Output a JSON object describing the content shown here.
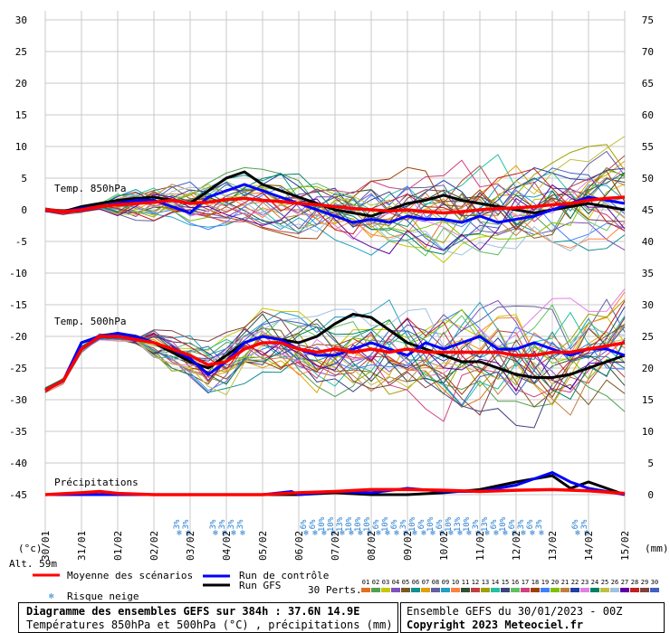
{
  "chart_data": {
    "type": "line",
    "left_ticks": [
      "30",
      "25",
      "20",
      "15",
      "10",
      "5",
      "0",
      "-5",
      "-10",
      "-15",
      "-20",
      "-25",
      "-30",
      "-35",
      "-40",
      "-45"
    ],
    "right_ticks": [
      "75",
      "70",
      "65",
      "60",
      "55",
      "50",
      "45",
      "40",
      "35",
      "30",
      "25",
      "20",
      "15",
      "10",
      "5",
      "0"
    ],
    "dates": [
      "30/01",
      "31/01",
      "01/02",
      "02/02",
      "03/02",
      "04/02",
      "05/02",
      "06/02",
      "07/02",
      "08/02",
      "09/02",
      "10/02",
      "11/02",
      "12/02",
      "13/02",
      "14/02",
      "15/02"
    ],
    "left_unit": "(°c)",
    "right_unit": "(mm)",
    "panel_labels": [
      "Temp. 850hPa",
      "Temp. 500hPa",
      "Précipitations"
    ],
    "x_day_range": [
      0,
      16
    ],
    "ylim_temp": [
      -45,
      30
    ],
    "ylim_precip": [
      0,
      75
    ],
    "series": [
      {
        "name": "Moyenne des scénarios",
        "panel": "850",
        "x": [
          0,
          0.5,
          1,
          1.5,
          2,
          2.5,
          3,
          3.5,
          4,
          4.5,
          5,
          5.5,
          6,
          6.5,
          7,
          7.5,
          8,
          8.5,
          9,
          9.5,
          10,
          10.5,
          11,
          11.5,
          12,
          12.5,
          13,
          13.5,
          14,
          14.5,
          15,
          15.5,
          16
        ],
        "y": [
          0,
          -0.3,
          0,
          0.5,
          0.8,
          1,
          1.2,
          1.5,
          1,
          1.2,
          1.6,
          1.8,
          1.5,
          1.3,
          1,
          0.8,
          0.5,
          0.2,
          0,
          -0.2,
          0,
          -0.3,
          -0.5,
          -0.3,
          0,
          0.2,
          0.3,
          0.5,
          0.8,
          1,
          1.5,
          1.8,
          2
        ]
      },
      {
        "name": "Run de contrôle",
        "panel": "850",
        "x": [
          0,
          0.5,
          1,
          1.5,
          2,
          2.5,
          3,
          3.5,
          4,
          4.5,
          5,
          5.5,
          6,
          6.5,
          7,
          7.5,
          8,
          8.5,
          9,
          9.5,
          10,
          10.5,
          11,
          11.5,
          12,
          12.5,
          13,
          13.5,
          14,
          14.5,
          15,
          15.5,
          16
        ],
        "y": [
          0,
          -0.3,
          0.2,
          0.5,
          1,
          1.5,
          1.5,
          0.5,
          -0.5,
          2,
          3,
          4,
          3,
          2,
          1,
          0,
          -1,
          -2,
          -1.5,
          -2,
          -1,
          -1.5,
          -1.5,
          -2,
          -1,
          -2,
          -1.5,
          -1,
          0,
          1,
          2,
          1.5,
          1
        ]
      },
      {
        "name": "Run GFS",
        "panel": "850",
        "x": [
          0,
          0.5,
          1,
          1.5,
          2,
          2.5,
          3,
          3.5,
          4,
          4.5,
          5,
          5.5,
          6,
          6.5,
          7,
          7.5,
          8,
          8.5,
          9,
          9.5,
          10,
          10.5,
          11,
          11.5,
          12,
          12.5,
          13,
          13.5,
          14,
          14.5,
          15,
          15.5,
          16
        ],
        "y": [
          0,
          -0.3,
          0.5,
          1,
          1.5,
          1.8,
          2,
          1.5,
          1,
          3,
          5,
          6,
          4,
          3,
          2,
          1,
          0,
          -0.5,
          -1,
          0,
          1,
          1.5,
          2.3,
          1.5,
          1,
          0.5,
          0,
          -0.5,
          0,
          0.5,
          1,
          0.5,
          0
        ]
      },
      {
        "name": "Moyenne des scénarios",
        "panel": "500",
        "x": [
          0,
          0.5,
          1,
          1.5,
          2,
          2.5,
          3,
          3.5,
          4,
          4.5,
          5,
          5.5,
          6,
          6.5,
          7,
          7.5,
          8,
          8.5,
          9,
          9.5,
          10,
          10.5,
          11,
          11.5,
          12,
          12.5,
          13,
          13.5,
          14,
          14.5,
          15,
          15.5,
          16
        ],
        "y": [
          -28.5,
          -27,
          -22,
          -20,
          -20,
          -20.5,
          -21,
          -22,
          -23,
          -24.5,
          -24,
          -22,
          -21,
          -21,
          -22,
          -22.5,
          -22,
          -22.5,
          -22,
          -22.5,
          -22,
          -22.5,
          -22.5,
          -22.5,
          -22.5,
          -22.5,
          -23,
          -23,
          -22.5,
          -22.5,
          -22,
          -21.5,
          -21
        ]
      },
      {
        "name": "Run de contrôle",
        "panel": "500",
        "x": [
          0,
          0.5,
          1,
          1.5,
          2,
          2.5,
          3,
          3.5,
          4,
          4.5,
          5,
          5.5,
          6,
          6.5,
          7,
          7.5,
          8,
          8.5,
          9,
          9.5,
          10,
          10.5,
          11,
          11.5,
          12,
          12.5,
          13,
          13.5,
          14,
          14.5,
          15,
          15.5,
          16
        ],
        "y": [
          -28.5,
          -27,
          -21,
          -20,
          -19.5,
          -20,
          -21,
          -22,
          -23.5,
          -26,
          -24,
          -21,
          -20,
          -20.5,
          -22,
          -23,
          -23,
          -22,
          -21,
          -22,
          -23,
          -21,
          -22,
          -21,
          -20,
          -22,
          -22,
          -21,
          -22,
          -23,
          -22,
          -22,
          -23
        ]
      },
      {
        "name": "Run GFS",
        "panel": "500",
        "x": [
          0,
          0.5,
          1,
          1.5,
          2,
          2.5,
          3,
          3.5,
          4,
          4.5,
          5,
          5.5,
          6,
          6.5,
          7,
          7.5,
          8,
          8.5,
          9,
          9.5,
          10,
          10.5,
          11,
          11.5,
          12,
          12.5,
          13,
          13.5,
          14,
          14.5,
          15,
          15.5,
          16
        ],
        "y": [
          -28.5,
          -27,
          -21,
          -20,
          -19.5,
          -20,
          -21,
          -22.5,
          -24,
          -25,
          -23,
          -21,
          -20,
          -20.5,
          -21,
          -20,
          -18,
          -16.5,
          -17,
          -19,
          -21,
          -22,
          -23,
          -24,
          -24,
          -25,
          -26,
          -26.5,
          -26.5,
          -26,
          -25,
          -24,
          -23
        ]
      },
      {
        "name": "Moyenne des scénarios",
        "panel": "precip",
        "x": [
          0,
          1,
          1.5,
          2,
          3,
          4,
          5,
          6,
          7,
          8,
          9,
          10,
          11,
          12,
          13,
          14,
          15,
          16
        ],
        "y": [
          0,
          0.3,
          0.5,
          0.2,
          0,
          0,
          0,
          0,
          0.3,
          0.5,
          0.8,
          0.8,
          0.7,
          0.5,
          0.7,
          0.8,
          0.6,
          0.2
        ]
      },
      {
        "name": "Run de contrôle",
        "panel": "precip",
        "x": [
          0,
          2,
          4,
          6,
          6.8,
          7,
          8,
          9,
          10,
          11,
          12,
          13,
          13.5,
          14,
          14.5,
          15,
          16
        ],
        "y": [
          0,
          0,
          0,
          0,
          0.5,
          0,
          0.5,
          0.3,
          1,
          0.5,
          0.5,
          1.5,
          2.5,
          3.5,
          2,
          1,
          0
        ]
      },
      {
        "name": "Run GFS",
        "panel": "precip",
        "x": [
          0,
          2,
          4,
          6,
          7,
          8,
          9,
          10,
          11,
          12,
          13,
          14,
          14.5,
          15,
          16
        ],
        "y": [
          0,
          0,
          0,
          0,
          0,
          0.3,
          0,
          0,
          0.3,
          0.8,
          2,
          3,
          1,
          2,
          0
        ]
      }
    ],
    "snow_risk": [
      {
        "day": 3.7,
        "pct": "3%"
      },
      {
        "day": 3.95,
        "pct": "3%"
      },
      {
        "day": 4.7,
        "pct": "3%"
      },
      {
        "day": 4.95,
        "pct": "3%"
      },
      {
        "day": 5.2,
        "pct": "3%"
      },
      {
        "day": 5.45,
        "pct": "3%"
      },
      {
        "day": 7.2,
        "pct": "6%"
      },
      {
        "day": 7.45,
        "pct": "6%"
      },
      {
        "day": 7.7,
        "pct": "10%"
      },
      {
        "day": 7.95,
        "pct": "10%"
      },
      {
        "day": 8.2,
        "pct": "13%"
      },
      {
        "day": 8.45,
        "pct": "10%"
      },
      {
        "day": 8.7,
        "pct": "10%"
      },
      {
        "day": 8.95,
        "pct": "10%"
      },
      {
        "day": 9.2,
        "pct": "6%"
      },
      {
        "day": 9.45,
        "pct": "10%"
      },
      {
        "day": 9.7,
        "pct": "6%"
      },
      {
        "day": 9.95,
        "pct": "3%"
      },
      {
        "day": 10.2,
        "pct": "10%"
      },
      {
        "day": 10.45,
        "pct": "6%"
      },
      {
        "day": 10.7,
        "pct": "10%"
      },
      {
        "day": 10.95,
        "pct": "6%"
      },
      {
        "day": 11.2,
        "pct": "10%"
      },
      {
        "day": 11.45,
        "pct": "13%"
      },
      {
        "day": 11.7,
        "pct": "10%"
      },
      {
        "day": 11.95,
        "pct": "3%"
      },
      {
        "day": 12.2,
        "pct": "13%"
      },
      {
        "day": 12.45,
        "pct": "6%"
      },
      {
        "day": 12.7,
        "pct": "10%"
      },
      {
        "day": 12.95,
        "pct": "6%"
      },
      {
        "day": 13.2,
        "pct": "3%"
      },
      {
        "day": 13.45,
        "pct": "6%"
      },
      {
        "day": 13.7,
        "pct": "3%"
      },
      {
        "day": 14.7,
        "pct": "6%"
      },
      {
        "day": 14.95,
        "pct": "3%"
      }
    ],
    "perturbation_colors": [
      "#e07020",
      "#50a050",
      "#c8c800",
      "#8050c0",
      "#7a5a20",
      "#109090",
      "#e0a000",
      "#6060a0",
      "#20a0c0",
      "#ff8040",
      "#305030",
      "#c04040",
      "#a0a000",
      "#20c0a0",
      "#404080",
      "#60c060",
      "#d04080",
      "#a04000",
      "#4080ff",
      "#80c000",
      "#c08040",
      "#2040a0",
      "#e080e0",
      "#008060",
      "#c0c040",
      "#a0c0e0",
      "#6000a0",
      "#c02020",
      "#804040",
      "#4060c0"
    ]
  },
  "legend": {
    "altitude": "Alt. 59m",
    "mean": "Moyenne des scénarios",
    "control": "Run de contrôle",
    "gfs": "Run GFS",
    "snow": "Risque neige",
    "perts": "30 Perts.",
    "pert_numbers": [
      "01",
      "02",
      "03",
      "04",
      "05",
      "06",
      "07",
      "08",
      "09",
      "10",
      "11",
      "12",
      "13",
      "14",
      "15",
      "16",
      "17",
      "18",
      "19",
      "20",
      "21",
      "22",
      "23",
      "24",
      "25",
      "26",
      "27",
      "28",
      "29",
      "30"
    ]
  },
  "footer": {
    "title": "Diagramme des ensembles GEFS sur 384h : 37.6N 14.9E",
    "subtitle": "Températures 850hPa et 500hPa (°C) , précipitations (mm)",
    "run": "Ensemble GEFS du 30/01/2023 - 00Z",
    "copyright": "Copyright 2023 Meteociel.fr"
  },
  "colors": {
    "mean": "#ff0000",
    "control": "#0000ff",
    "gfs": "#000000",
    "grid": "#c8c8c8",
    "snow": "#2a7fd0"
  }
}
